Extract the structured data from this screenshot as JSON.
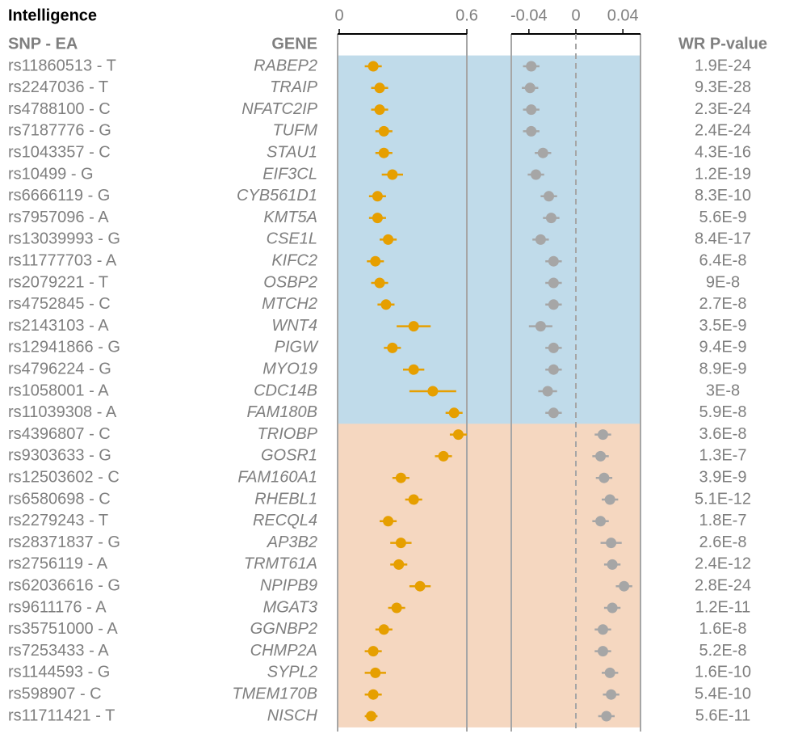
{
  "chart_data": {
    "type": "forest",
    "title": "Intelligence",
    "snp_header": "SNP - EA",
    "gene_header": "GENE",
    "p_header": "WR P-value",
    "snps": [
      "rs11860513 - T",
      "rs2247036 - T",
      "rs4788100 - C",
      "rs7187776 - G",
      "rs1043357 - C",
      "rs10499 - G",
      "rs6666119 - G",
      "rs7957096 - A",
      "rs13039993 - G",
      "rs11777703 - A",
      "rs2079221 - T",
      "rs4752845 - C",
      "rs2143103 - A",
      "rs12941866 - G",
      "rs4796224 - G",
      "rs1058001 - A",
      "rs11039308 - A",
      "rs4396807 - C",
      "rs9303633 - G",
      "rs12503602 - C",
      "rs6580698 - C",
      "rs2279243 - T",
      "rs28371837 - G",
      "rs2756119 - A",
      "rs62036616 - G",
      "rs9611176 - A",
      "rs35751000 - A",
      "rs7253433 - A",
      "rs1144593 - G",
      "rs598907 - C",
      "rs11711421 - T"
    ],
    "genes": [
      "RABEP2",
      "TRAIP",
      "NFATC2IP",
      "TUFM",
      "STAU1",
      "EIF3CL",
      "CYB561D1",
      "KMT5A",
      "CSE1L",
      "KIFC2",
      "OSBP2",
      "MTCH2",
      "WNT4",
      "PIGW",
      "MYO19",
      "CDC14B",
      "FAM180B",
      "TRIOBP",
      "GOSR1",
      "FAM160A1",
      "RHEBL1",
      "RECQL4",
      "AP3B2",
      "TRMT61A",
      "NPIPB9",
      "MGAT3",
      "GGNBP2",
      "CHMP2A",
      "SYPL2",
      "TMEM170B",
      "NISCH"
    ],
    "pvalues": [
      "1.9E-24",
      "9.3E-28",
      "2.3E-24",
      "2.4E-24",
      "4.3E-16",
      "1.2E-19",
      "8.3E-10",
      "5.6E-9",
      "8.4E-17",
      "6.4E-8",
      "9E-8",
      "2.7E-8",
      "3.5E-9",
      "9.4E-9",
      "8.9E-9",
      "3E-8",
      "5.9E-8",
      "3.6E-8",
      "1.3E-7",
      "3.9E-9",
      "5.1E-12",
      "1.8E-7",
      "2.6E-8",
      "2.4E-12",
      "2.8E-24",
      "1.2E-11",
      "1.6E-8",
      "5.2E-8",
      "1.6E-10",
      "5.4E-10",
      "5.6E-11"
    ],
    "panels": [
      {
        "xlim": [
          0,
          0.6
        ],
        "xticks": [
          0,
          0.6
        ],
        "color": "#e69f00",
        "values": [
          0.16,
          0.19,
          0.19,
          0.21,
          0.21,
          0.25,
          0.18,
          0.18,
          0.23,
          0.17,
          0.19,
          0.22,
          0.35,
          0.25,
          0.35,
          0.44,
          0.54,
          0.56,
          0.49,
          0.29,
          0.35,
          0.23,
          0.29,
          0.28,
          0.38,
          0.27,
          0.21,
          0.16,
          0.17,
          0.16,
          0.15
        ],
        "errors": [
          0.04,
          0.04,
          0.04,
          0.04,
          0.04,
          0.05,
          0.04,
          0.04,
          0.04,
          0.04,
          0.04,
          0.04,
          0.08,
          0.04,
          0.05,
          0.11,
          0.04,
          0.04,
          0.04,
          0.04,
          0.04,
          0.04,
          0.05,
          0.04,
          0.05,
          0.04,
          0.04,
          0.04,
          0.05,
          0.04,
          0.03
        ]
      },
      {
        "xlim": [
          -0.055,
          0.055
        ],
        "xticks": [
          -0.04,
          0,
          0.04
        ],
        "color": "#a6a6a6",
        "ref_line": 0,
        "values": [
          -0.038,
          -0.039,
          -0.038,
          -0.038,
          -0.028,
          -0.034,
          -0.023,
          -0.021,
          -0.03,
          -0.019,
          -0.019,
          -0.019,
          -0.03,
          -0.019,
          -0.019,
          -0.024,
          -0.019,
          0.023,
          0.021,
          0.024,
          0.029,
          0.021,
          0.03,
          0.031,
          0.041,
          0.031,
          0.023,
          0.023,
          0.029,
          0.03,
          0.026
        ],
        "errors": [
          0.007,
          0.007,
          0.007,
          0.007,
          0.007,
          0.007,
          0.007,
          0.007,
          0.007,
          0.007,
          0.007,
          0.007,
          0.01,
          0.007,
          0.007,
          0.008,
          0.007,
          0.007,
          0.007,
          0.007,
          0.007,
          0.007,
          0.009,
          0.007,
          0.007,
          0.007,
          0.007,
          0.007,
          0.007,
          0.007,
          0.007
        ]
      }
    ],
    "band_colors": {
      "negative": "#c0dbea",
      "positive": "#f5d7c0"
    }
  }
}
